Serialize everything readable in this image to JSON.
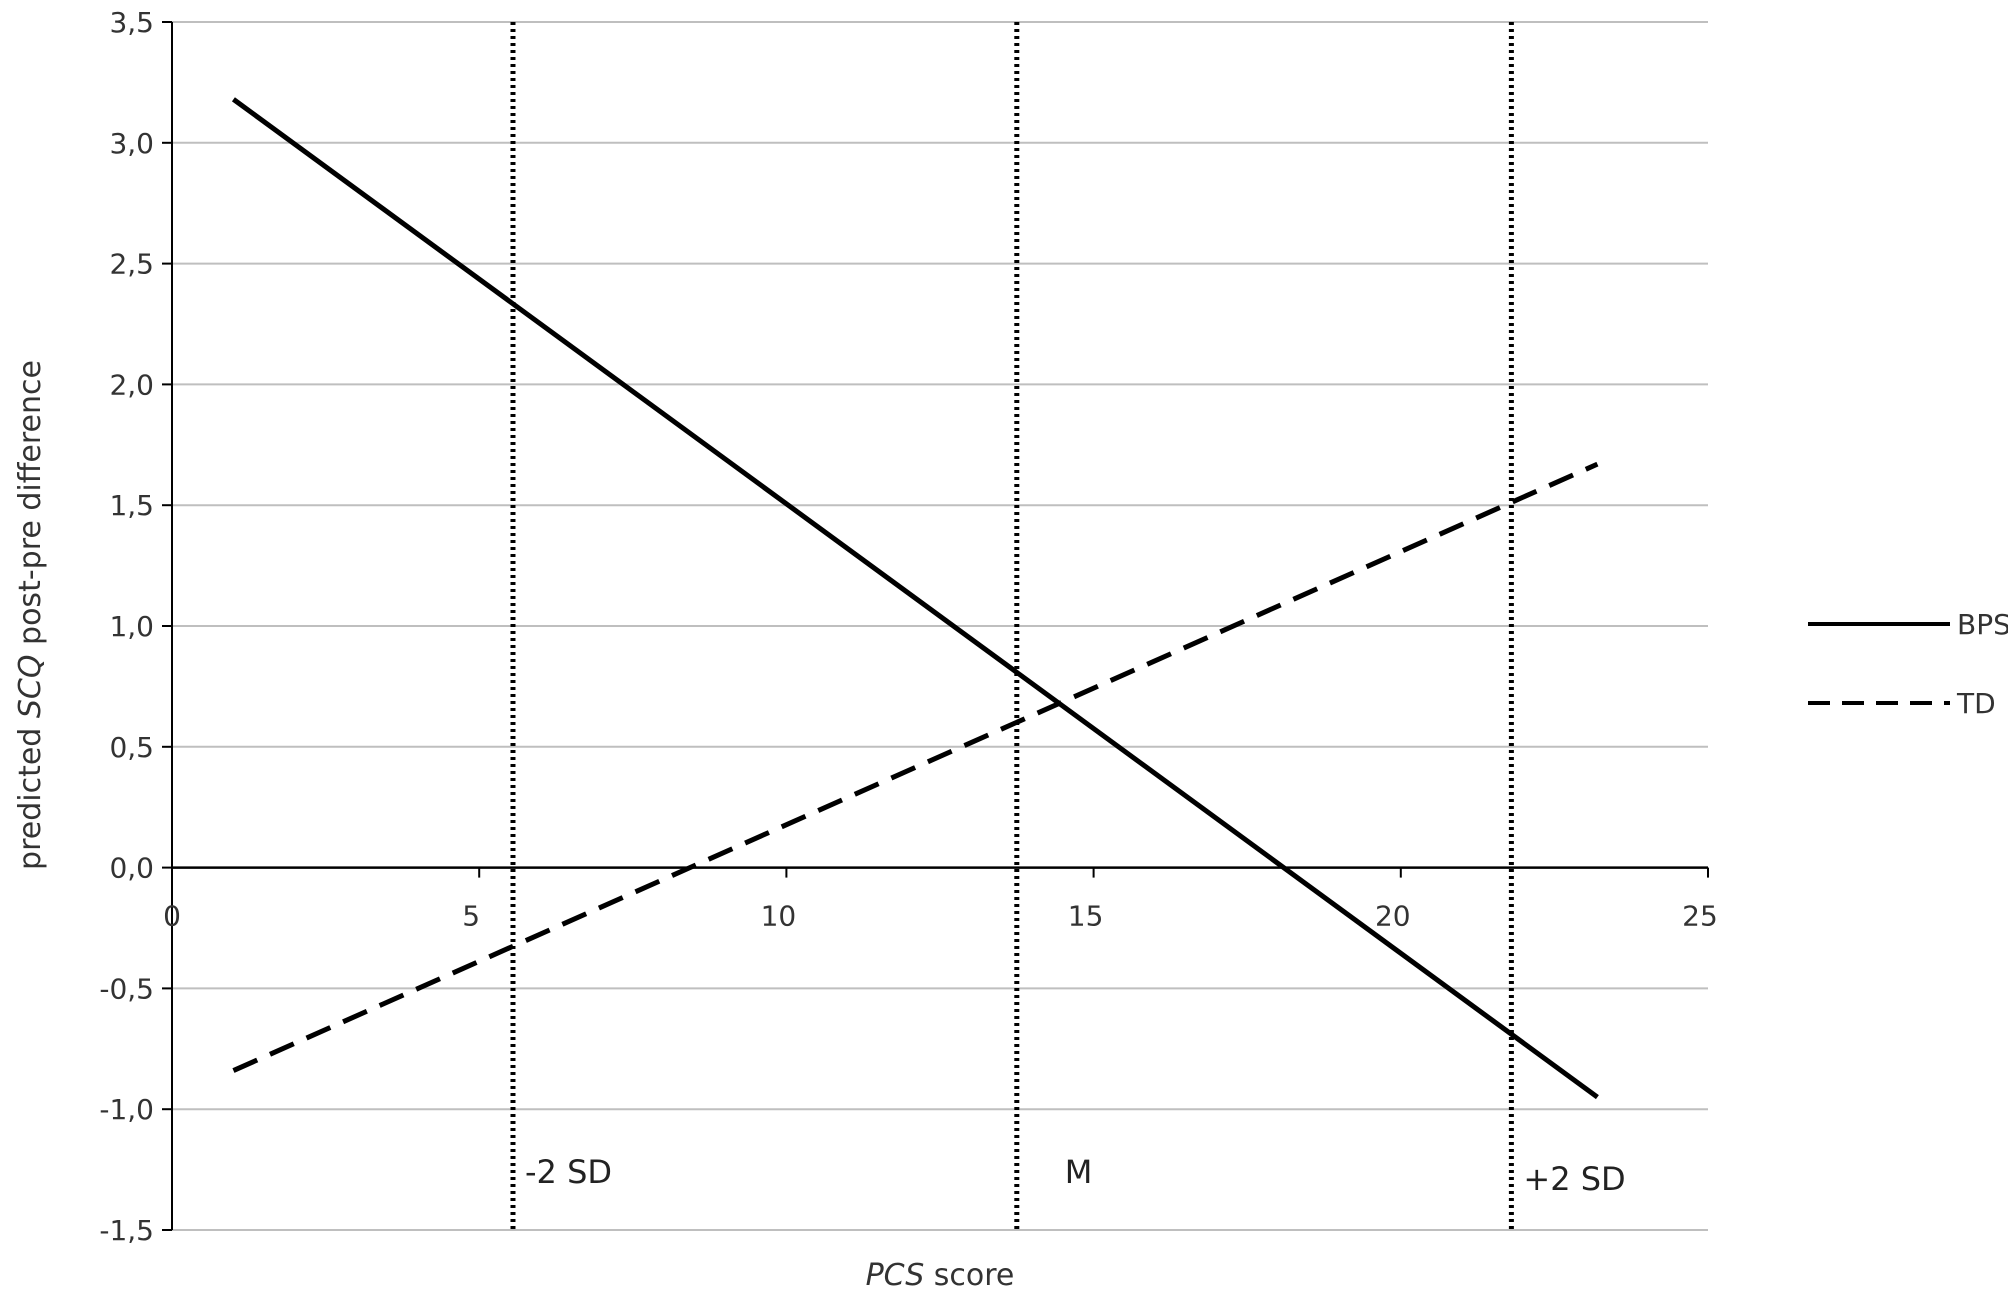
{
  "chart_data": {
    "type": "line",
    "x_axis": {
      "title_italic": "PCS",
      "title_rest": " score",
      "min": 0,
      "max": 25,
      "ticks": [
        0,
        5,
        10,
        15,
        20,
        25
      ],
      "tick_labels": [
        "0",
        "5",
        "10",
        "15",
        "20",
        "25"
      ]
    },
    "y_axis": {
      "title_prefix": "predicted ",
      "title_italic": "SCQ",
      "title_suffix": " post-pre difference",
      "min": -1.5,
      "max": 3.5,
      "ticks": [
        -1.5,
        -1.0,
        -0.5,
        0.0,
        0.5,
        1.0,
        1.5,
        2.0,
        2.5,
        3.0,
        3.5
      ],
      "tick_labels": [
        "-1,5",
        "-1,0",
        "-0,5",
        "0,0",
        "0,5",
        "1,0",
        "1,5",
        "2,0",
        "2,5",
        "3,0",
        "3,5"
      ]
    },
    "grid": "horizontal",
    "legend_position": "right",
    "series": [
      {
        "name": "BPS",
        "style": "solid",
        "color": "#000000",
        "x": [
          1,
          23.2
        ],
        "y": [
          3.18,
          -0.95
        ]
      },
      {
        "name": "TD",
        "style": "dashed",
        "color": "#000000",
        "x": [
          1,
          23.2
        ],
        "y": [
          -0.84,
          1.67
        ]
      }
    ],
    "reference_lines": [
      {
        "label": "-2 SD",
        "x": 5.55
      },
      {
        "label": "M",
        "x": 13.75
      },
      {
        "label": "+2 SD",
        "x": 21.8
      }
    ]
  }
}
